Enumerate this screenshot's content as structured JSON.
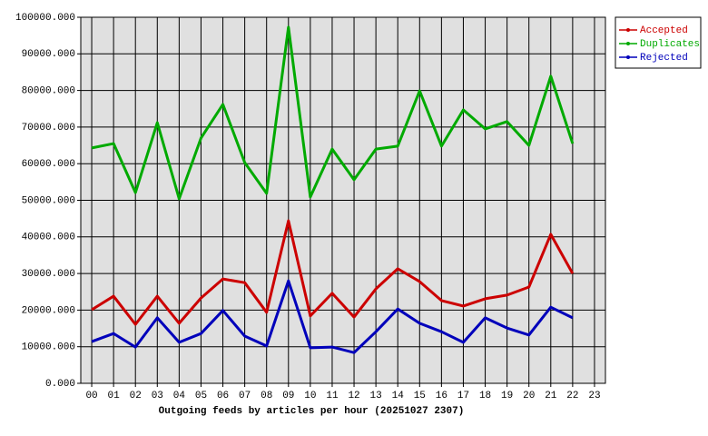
{
  "chart_data": {
    "type": "line",
    "title": "Outgoing feeds by articles per hour (20251027 2307)",
    "categories": [
      "00",
      "01",
      "02",
      "03",
      "04",
      "05",
      "06",
      "07",
      "08",
      "09",
      "10",
      "11",
      "12",
      "13",
      "14",
      "15",
      "16",
      "17",
      "18",
      "19",
      "20",
      "21",
      "22",
      "23"
    ],
    "series": [
      {
        "name": "Accepted",
        "color": "#cc0000",
        "values": [
          20100,
          23800,
          16100,
          23800,
          16400,
          23300,
          28500,
          27500,
          19400,
          44400,
          18400,
          24600,
          18100,
          25800,
          31300,
          27800,
          22600,
          21100,
          23100,
          24100,
          26300,
          40700,
          30000,
          null
        ]
      },
      {
        "name": "Duplicates",
        "color": "#00aa00",
        "values": [
          64300,
          65500,
          52100,
          71200,
          50400,
          67000,
          76200,
          60300,
          51900,
          97300,
          50900,
          64000,
          55600,
          64000,
          64800,
          79900,
          64800,
          74700,
          69500,
          71500,
          65000,
          83900,
          65500,
          null
        ]
      },
      {
        "name": "Rejected",
        "color": "#0000bb",
        "values": [
          11400,
          13600,
          9900,
          17900,
          11200,
          13600,
          19900,
          12900,
          10200,
          28000,
          9700,
          9900,
          8400,
          14100,
          20300,
          16400,
          14100,
          11200,
          17900,
          15100,
          13200,
          20800,
          17900,
          null
        ]
      }
    ],
    "ylim": [
      0,
      100000
    ],
    "yticks": [
      {
        "value": 0,
        "label": "0.000"
      },
      {
        "value": 10000,
        "label": "10000.000"
      },
      {
        "value": 20000,
        "label": "20000.000"
      },
      {
        "value": 30000,
        "label": "30000.000"
      },
      {
        "value": 40000,
        "label": "40000.000"
      },
      {
        "value": 50000,
        "label": "50000.000"
      },
      {
        "value": 60000,
        "label": "60000.000"
      },
      {
        "value": 70000,
        "label": "70000.000"
      },
      {
        "value": 80000,
        "label": "80000.000"
      },
      {
        "value": 90000,
        "label": "90000.000"
      },
      {
        "value": 100000,
        "label": "100000.000"
      }
    ],
    "grid": true,
    "legend": "top-right"
  }
}
